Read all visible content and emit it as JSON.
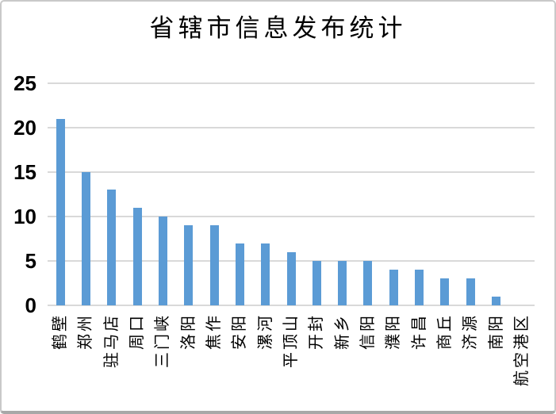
{
  "chart_data": {
    "type": "bar",
    "title": "省辖市信息发布统计",
    "categories": [
      "鹤壁",
      "郑州",
      "驻马店",
      "周口",
      "三门峡",
      "洛阳",
      "焦作",
      "安阳",
      "漯河",
      "平顶山",
      "开封",
      "新乡",
      "信阳",
      "濮阳",
      "许昌",
      "商丘",
      "济源",
      "南阳",
      "航空港区"
    ],
    "values": [
      21,
      15,
      13,
      11,
      10,
      9,
      9,
      7,
      7,
      6,
      5,
      5,
      5,
      4,
      4,
      3,
      3,
      1,
      0
    ],
    "xlabel": "",
    "ylabel": "",
    "ylim": [
      0,
      25
    ],
    "yticks": [
      0,
      5,
      10,
      15,
      20,
      25
    ],
    "grid": true,
    "legend": false,
    "colors": {
      "bar": "#5B9BD5",
      "gridline": "#D9D9D9",
      "axis_line": "#D9D9D9",
      "text": "#000000",
      "background": "#FFFFFF"
    }
  }
}
